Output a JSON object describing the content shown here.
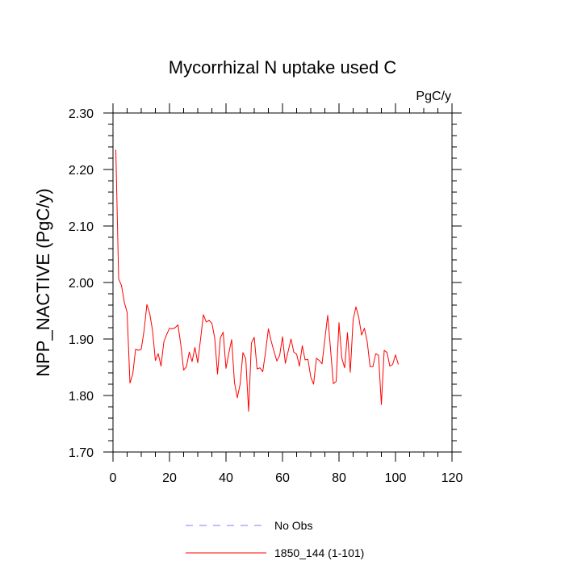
{
  "chart_data": {
    "type": "line",
    "title": "Mycorrhizal N uptake used C",
    "units_label": "PgC/y",
    "ylabel": "NPP_NACTIVE  (PgC/y)",
    "xlabel": "",
    "xlim": [
      0,
      120
    ],
    "ylim": [
      1.7,
      2.3
    ],
    "x_ticks": [
      0,
      20,
      40,
      60,
      80,
      100,
      120
    ],
    "x_tick_labels": [
      "0",
      "20",
      "40",
      "60",
      "80",
      "100",
      "120"
    ],
    "y_ticks": [
      1.7,
      1.8,
      1.9,
      2.0,
      2.1,
      2.2,
      2.3
    ],
    "y_tick_labels": [
      "1.70",
      "1.80",
      "1.90",
      "2.00",
      "2.10",
      "2.20",
      "2.30"
    ],
    "grid": false,
    "legend": {
      "position": "bottom-center",
      "entries": [
        {
          "label": "No Obs",
          "color": "#8080ff",
          "style": "dashed"
        },
        {
          "label": "1850_144 (1-101)",
          "color": "#ff0000",
          "style": "solid"
        }
      ]
    },
    "series": [
      {
        "name": "1850_144 (1-101)",
        "color": "#ff0000",
        "x": [
          1,
          2,
          3,
          4,
          5,
          6,
          7,
          8,
          9,
          10,
          11,
          12,
          13,
          14,
          15,
          16,
          17,
          18,
          19,
          20,
          21,
          22,
          23,
          24,
          25,
          26,
          27,
          28,
          29,
          30,
          31,
          32,
          33,
          34,
          35,
          36,
          37,
          38,
          39,
          40,
          41,
          42,
          43,
          44,
          45,
          46,
          47,
          48,
          49,
          50,
          51,
          52,
          53,
          54,
          55,
          56,
          57,
          58,
          59,
          60,
          61,
          62,
          63,
          64,
          65,
          66,
          67,
          68,
          69,
          70,
          71,
          72,
          73,
          74,
          75,
          76,
          77,
          78,
          79,
          80,
          81,
          82,
          83,
          84,
          85,
          86,
          87,
          88,
          89,
          90,
          91,
          92,
          93,
          94,
          95,
          96,
          97,
          98,
          99,
          100,
          101
        ],
        "values": [
          2.235,
          2.006,
          1.995,
          1.965,
          1.947,
          1.822,
          1.838,
          1.882,
          1.88,
          1.882,
          1.915,
          1.961,
          1.945,
          1.915,
          1.862,
          1.874,
          1.852,
          1.895,
          1.908,
          1.919,
          1.918,
          1.92,
          1.925,
          1.89,
          1.845,
          1.851,
          1.877,
          1.86,
          1.885,
          1.858,
          1.9,
          1.943,
          1.93,
          1.933,
          1.928,
          1.902,
          1.838,
          1.902,
          1.912,
          1.848,
          1.875,
          1.899,
          1.823,
          1.796,
          1.82,
          1.876,
          1.865,
          1.772,
          1.893,
          1.903,
          1.847,
          1.849,
          1.842,
          1.877,
          1.918,
          1.896,
          1.878,
          1.861,
          1.871,
          1.904,
          1.857,
          1.878,
          1.9,
          1.877,
          1.873,
          1.852,
          1.888,
          1.863,
          1.864,
          1.833,
          1.82,
          1.866,
          1.862,
          1.856,
          1.9,
          1.942,
          1.882,
          1.821,
          1.825,
          1.929,
          1.866,
          1.849,
          1.911,
          1.841,
          1.934,
          1.957,
          1.938,
          1.907,
          1.919,
          1.895,
          1.851,
          1.851,
          1.874,
          1.871,
          1.784,
          1.88,
          1.876,
          1.852,
          1.855,
          1.872,
          1.855
        ]
      }
    ]
  }
}
